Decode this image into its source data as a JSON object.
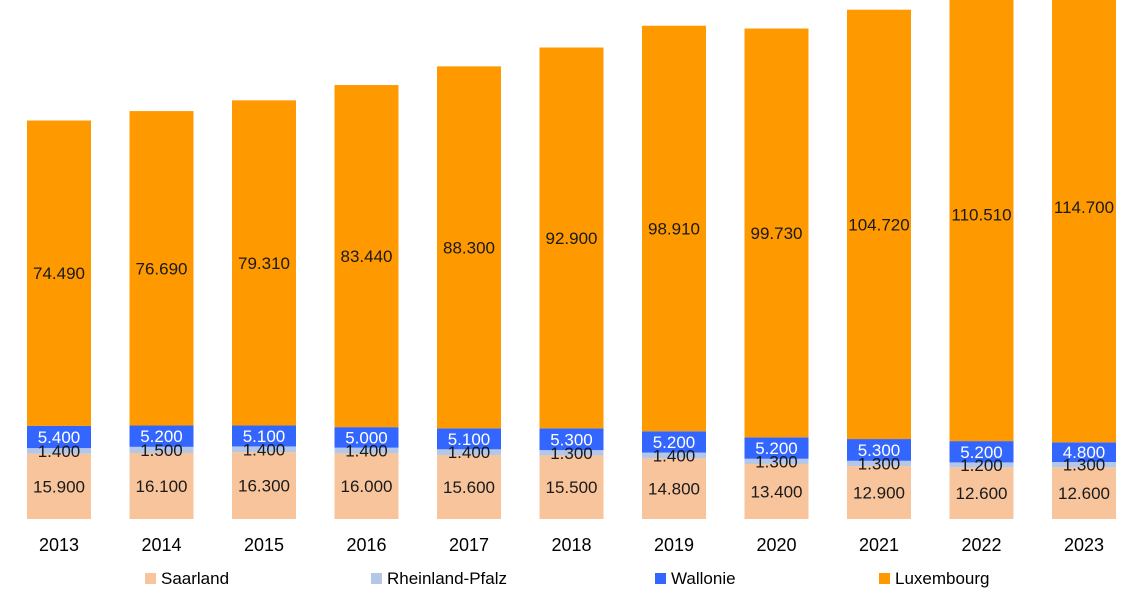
{
  "chart_data": {
    "type": "bar",
    "stacked": true,
    "title": "",
    "xlabel": "",
    "ylabel": "",
    "categories": [
      "2013",
      "2014",
      "2015",
      "2016",
      "2017",
      "2018",
      "2019",
      "2020",
      "2021",
      "2022",
      "2023"
    ],
    "series": [
      {
        "name": "Saarland",
        "color": "#f8c49b",
        "values": [
          15.9,
          16.1,
          16.3,
          16.0,
          15.6,
          15.5,
          14.8,
          13.4,
          12.9,
          12.6,
          12.6
        ],
        "labels": [
          "15.900",
          "16.100",
          "16.300",
          "16.000",
          "15.600",
          "15.500",
          "14.800",
          "13.400",
          "12.900",
          "12.600",
          "12.600"
        ]
      },
      {
        "name": "Rheinland-Pfalz",
        "color": "#b4c7e7",
        "values": [
          1.4,
          1.5,
          1.4,
          1.4,
          1.4,
          1.3,
          1.4,
          1.3,
          1.3,
          1.2,
          1.3
        ],
        "labels": [
          "1.400",
          "1.500",
          "1.400",
          "1.400",
          "1.400",
          "1.300",
          "1.400",
          "1.300",
          "1.300",
          "1.200",
          "1.300"
        ]
      },
      {
        "name": "Wallonie",
        "color": "#3366ff",
        "values": [
          5.4,
          5.2,
          5.1,
          5.0,
          5.1,
          5.3,
          5.2,
          5.2,
          5.3,
          5.2,
          4.8
        ],
        "labels": [
          "5.400",
          "5.200",
          "5.100",
          "5.000",
          "5.100",
          "5.300",
          "5.200",
          "5.200",
          "5.300",
          "5.200",
          "4.800"
        ]
      },
      {
        "name": "Luxembourg",
        "color": "#ff9900",
        "values": [
          74.49,
          76.69,
          79.31,
          83.44,
          88.3,
          92.9,
          98.91,
          99.73,
          104.72,
          110.51,
          114.7
        ],
        "labels": [
          "74.490",
          "76.690",
          "79.310",
          "83.440",
          "88.300",
          "92.900",
          "98.910",
          "99.730",
          "104.720",
          "110.510",
          "114.700"
        ]
      }
    ],
    "legend_position": "bottom",
    "grid": false
  }
}
